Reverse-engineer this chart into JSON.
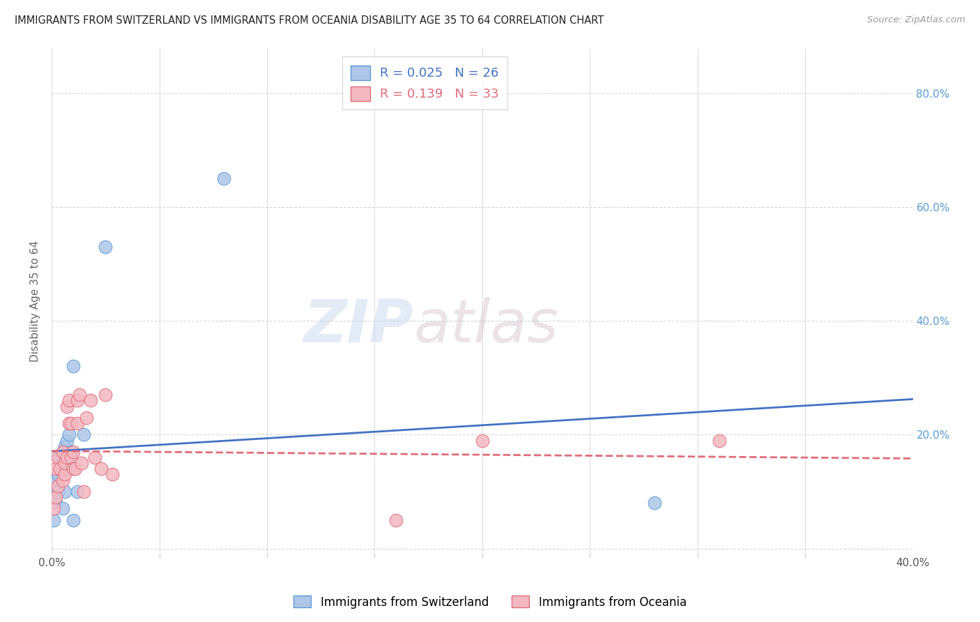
{
  "title": "IMMIGRANTS FROM SWITZERLAND VS IMMIGRANTS FROM OCEANIA DISABILITY AGE 35 TO 64 CORRELATION CHART",
  "source": "Source: ZipAtlas.com",
  "ylabel": "Disability Age 35 to 64",
  "xlim": [
    0.0,
    0.4
  ],
  "ylim": [
    -0.01,
    0.88
  ],
  "xticks": [
    0.0,
    0.4
  ],
  "xtick_labels": [
    "0.0%",
    "40.0%"
  ],
  "xticks_minor": [
    0.05,
    0.1,
    0.15,
    0.2,
    0.25,
    0.3,
    0.35
  ],
  "yticks_right": [
    0.2,
    0.4,
    0.6,
    0.8
  ],
  "ytick_labels_right": [
    "20.0%",
    "40.0%",
    "60.0%",
    "80.0%"
  ],
  "series1_label": "Immigrants from Switzerland",
  "series1_color": "#aec6e8",
  "series1_border": "#5b9bd5",
  "series1_R": "0.025",
  "series1_N": "26",
  "series2_label": "Immigrants from Oceania",
  "series2_color": "#f4b8c1",
  "series2_border": "#e06c7a",
  "series2_R": "0.139",
  "series2_N": "33",
  "line1_color": "#4472c4",
  "line2_color": "#e06c7a",
  "background_color": "#ffffff",
  "grid_color": "#cccccc",
  "watermark_zip": "ZIP",
  "watermark_atlas": "atlas",
  "series1_x": [
    0.001,
    0.002,
    0.002,
    0.003,
    0.003,
    0.004,
    0.004,
    0.005,
    0.005,
    0.005,
    0.006,
    0.006,
    0.006,
    0.007,
    0.007,
    0.007,
    0.008,
    0.008,
    0.009,
    0.01,
    0.01,
    0.012,
    0.015,
    0.025,
    0.08,
    0.28
  ],
  "series1_y": [
    0.05,
    0.08,
    0.12,
    0.1,
    0.13,
    0.14,
    0.16,
    0.07,
    0.15,
    0.17,
    0.1,
    0.14,
    0.18,
    0.15,
    0.17,
    0.19,
    0.16,
    0.2,
    0.17,
    0.32,
    0.05,
    0.1,
    0.2,
    0.53,
    0.65,
    0.08
  ],
  "series2_x": [
    0.001,
    0.002,
    0.002,
    0.003,
    0.003,
    0.004,
    0.005,
    0.005,
    0.006,
    0.006,
    0.007,
    0.007,
    0.008,
    0.008,
    0.009,
    0.009,
    0.01,
    0.01,
    0.011,
    0.012,
    0.012,
    0.013,
    0.014,
    0.015,
    0.016,
    0.018,
    0.02,
    0.023,
    0.025,
    0.028,
    0.16,
    0.2,
    0.31
  ],
  "series2_y": [
    0.07,
    0.09,
    0.14,
    0.11,
    0.16,
    0.14,
    0.12,
    0.17,
    0.13,
    0.15,
    0.25,
    0.16,
    0.22,
    0.26,
    0.16,
    0.22,
    0.14,
    0.17,
    0.14,
    0.26,
    0.22,
    0.27,
    0.15,
    0.1,
    0.23,
    0.26,
    0.16,
    0.14,
    0.27,
    0.13,
    0.05,
    0.19,
    0.19
  ]
}
